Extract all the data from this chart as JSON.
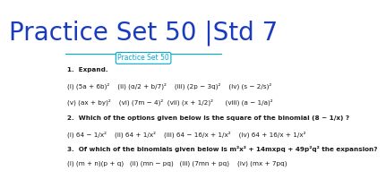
{
  "title": "Practice Set 50 |Std 7",
  "title_color": "#1a3bbf",
  "bg_color": "#ffffff",
  "box_label": "Practice Set 50",
  "box_color": "#00aacc",
  "line_color": "#00aacc",
  "content_lines": [
    "1.  Expand.",
    "(i) (5a + 6b)²    (ii) (α/2 + b/7)²    (iii) (2p − 3q)²    (iv) (s − 2/s)²",
    "(v) (ax + by)²    (vi) (7m − 4)²  (vii) (x + 1/2)²      (viii) (a − 1/a)²",
    "2.  Which of the options given below is the square of the binomial (8 − 1/x) ?",
    "(i) 64 − 1/x²    (ii) 64 + 1/x²    (iii) 64 − 16/x + 1/x²    (iv) 64 + 16/x + 1/x²",
    "3.  Of which of the binomials given below is m²x² + 14mxpq + 49p²q² the expansion?",
    "(i) (m + n)(p + q)   (ii) (mn − pq)   (iii) (7mn + pq)    (iv) (mx + 7pq)"
  ],
  "content_color": "#1a1a1a",
  "content_fontsize": 5.2,
  "title_fontsize": 20
}
